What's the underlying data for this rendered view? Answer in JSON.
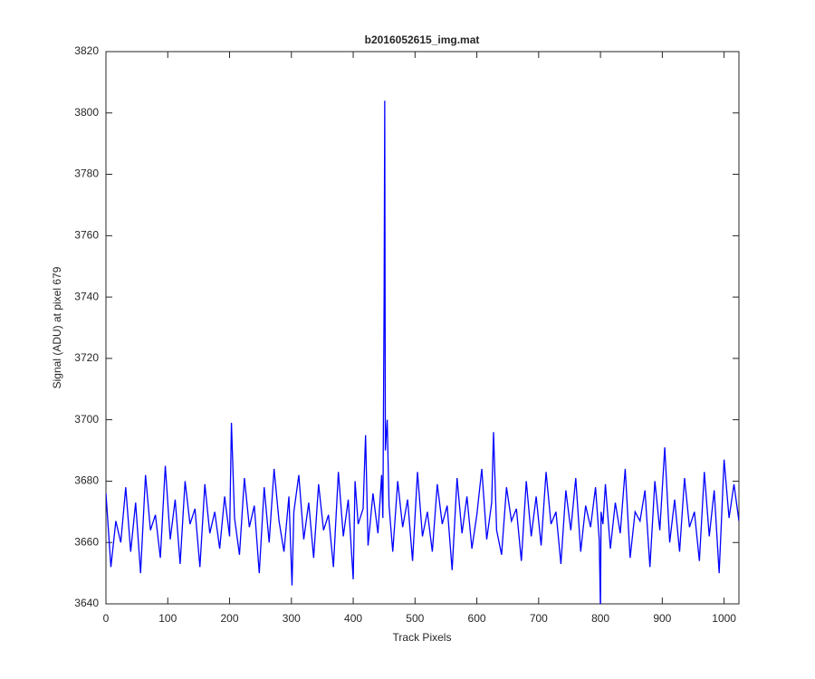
{
  "chart_data": {
    "type": "line",
    "title": "b2016052615_img.mat",
    "xlabel": "Track Pixels",
    "ylabel": "Signal (ADU) at pixel 679",
    "xlim": [
      0,
      1024
    ],
    "ylim": [
      3640,
      3820
    ],
    "xticks": [
      0,
      100,
      200,
      300,
      400,
      500,
      600,
      700,
      800,
      900,
      1000
    ],
    "yticks": [
      3640,
      3660,
      3680,
      3700,
      3720,
      3740,
      3760,
      3780,
      3800,
      3820
    ],
    "x": [
      0,
      8,
      16,
      24,
      32,
      40,
      48,
      56,
      64,
      72,
      80,
      88,
      96,
      104,
      112,
      120,
      128,
      136,
      144,
      152,
      160,
      168,
      176,
      184,
      192,
      200,
      203,
      208,
      216,
      224,
      232,
      240,
      248,
      256,
      264,
      272,
      280,
      288,
      296,
      301,
      304,
      312,
      320,
      328,
      336,
      344,
      352,
      360,
      368,
      376,
      384,
      392,
      400,
      403,
      408,
      416,
      420,
      424,
      432,
      440,
      446,
      448,
      450,
      451,
      452,
      455,
      458,
      464,
      472,
      480,
      488,
      496,
      504,
      512,
      520,
      528,
      536,
      544,
      552,
      560,
      568,
      576,
      584,
      592,
      600,
      608,
      616,
      624,
      627,
      632,
      640,
      648,
      656,
      664,
      672,
      680,
      688,
      696,
      704,
      712,
      720,
      728,
      736,
      744,
      752,
      760,
      768,
      776,
      784,
      792,
      798,
      800,
      801,
      804,
      808,
      816,
      824,
      832,
      840,
      848,
      856,
      864,
      872,
      880,
      888,
      896,
      904,
      912,
      920,
      928,
      936,
      944,
      952,
      960,
      968,
      976,
      984,
      992,
      1000,
      1008,
      1016,
      1024
    ],
    "series": [
      {
        "color": "#0000ff",
        "values": [
          3676,
          3652,
          3667,
          3660,
          3678,
          3657,
          3673,
          3650,
          3682,
          3664,
          3669,
          3655,
          3685,
          3661,
          3674,
          3653,
          3680,
          3666,
          3671,
          3652,
          3679,
          3663,
          3670,
          3658,
          3675,
          3662,
          3699,
          3668,
          3656,
          3681,
          3665,
          3672,
          3650,
          3678,
          3660,
          3684,
          3667,
          3657,
          3675,
          3646,
          3670,
          3682,
          3661,
          3673,
          3655,
          3679,
          3664,
          3669,
          3652,
          3683,
          3662,
          3674,
          3648,
          3680,
          3666,
          3671,
          3695,
          3659,
          3676,
          3663,
          3682,
          3668,
          3740,
          3804,
          3690,
          3700,
          3672,
          3657,
          3680,
          3665,
          3674,
          3654,
          3683,
          3662,
          3670,
          3657,
          3679,
          3666,
          3672,
          3651,
          3681,
          3663,
          3675,
          3658,
          3669,
          3684,
          3661,
          3673,
          3696,
          3664,
          3656,
          3678,
          3667,
          3671,
          3654,
          3680,
          3662,
          3675,
          3659,
          3683,
          3666,
          3670,
          3653,
          3677,
          3664,
          3681,
          3657,
          3672,
          3665,
          3678,
          3661,
          3638,
          3670,
          3666,
          3679,
          3658,
          3673,
          3663,
          3684,
          3655,
          3670,
          3667,
          3677,
          3652,
          3680,
          3664,
          3691,
          3660,
          3674,
          3657,
          3681,
          3665,
          3670,
          3654,
          3683,
          3662,
          3677,
          3650,
          3687,
          3668,
          3679,
          3667
        ]
      }
    ]
  }
}
